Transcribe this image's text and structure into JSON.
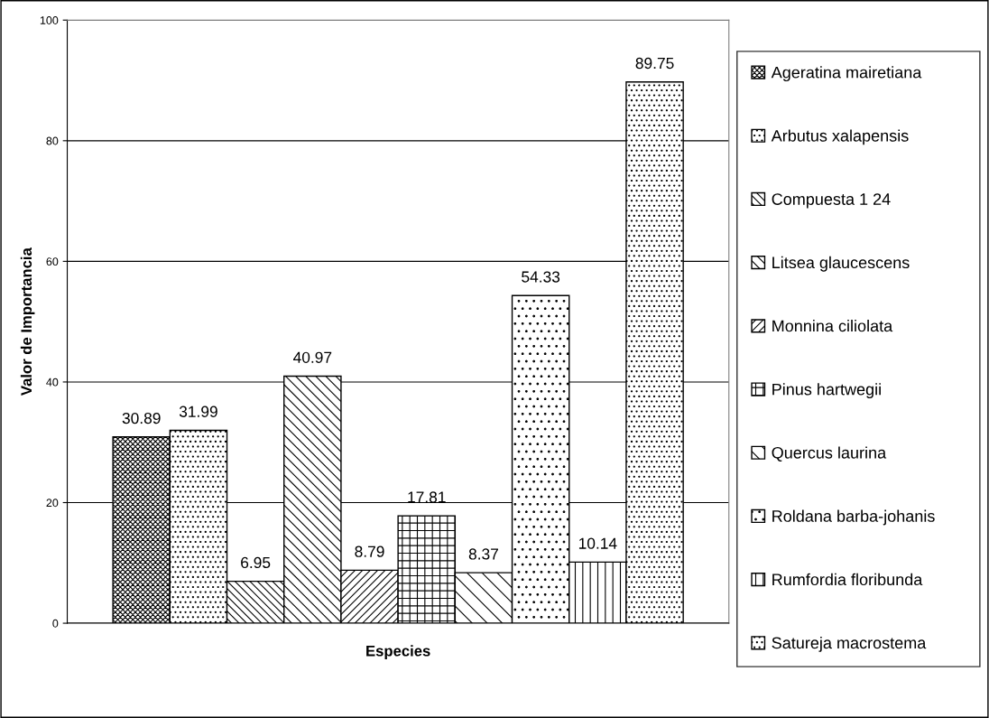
{
  "chart_data": {
    "type": "bar",
    "xlabel": "Especies",
    "ylabel": "Valor de Importancia",
    "categories": [
      null
    ],
    "series": [
      {
        "name": "Ageratina mairetiana",
        "color": "#000000",
        "values": [
          30.89
        ]
      },
      {
        "name": "Arbutus xalapensis",
        "color": "#000000",
        "values": [
          31.99
        ]
      },
      {
        "name": "Compuesta 1 24",
        "color": "#000000",
        "values": [
          6.95
        ]
      },
      {
        "name": "Litsea glaucescens",
        "color": "#000000",
        "values": [
          40.97
        ]
      },
      {
        "name": "Monnina ciliolata",
        "color": "#000000",
        "values": [
          8.79
        ]
      },
      {
        "name": "Pinus hartwegii",
        "color": "#000000",
        "values": [
          17.81
        ]
      },
      {
        "name": "Quercus laurina",
        "color": "#000000",
        "values": [
          8.37
        ]
      },
      {
        "name": "Roldana barba-johanis",
        "color": "#000000",
        "values": [
          54.33
        ]
      },
      {
        "name": "Rumfordia floribunda",
        "color": "#000000",
        "values": [
          10.14
        ]
      },
      {
        "name": "Satureja macrostema",
        "color": "#000000",
        "values": [
          89.75
        ]
      }
    ],
    "ylim": [
      0,
      100
    ],
    "yticks": [
      0,
      20,
      40,
      60,
      80,
      100
    ],
    "grid": "y",
    "legend": "right",
    "data_labels": true
  }
}
